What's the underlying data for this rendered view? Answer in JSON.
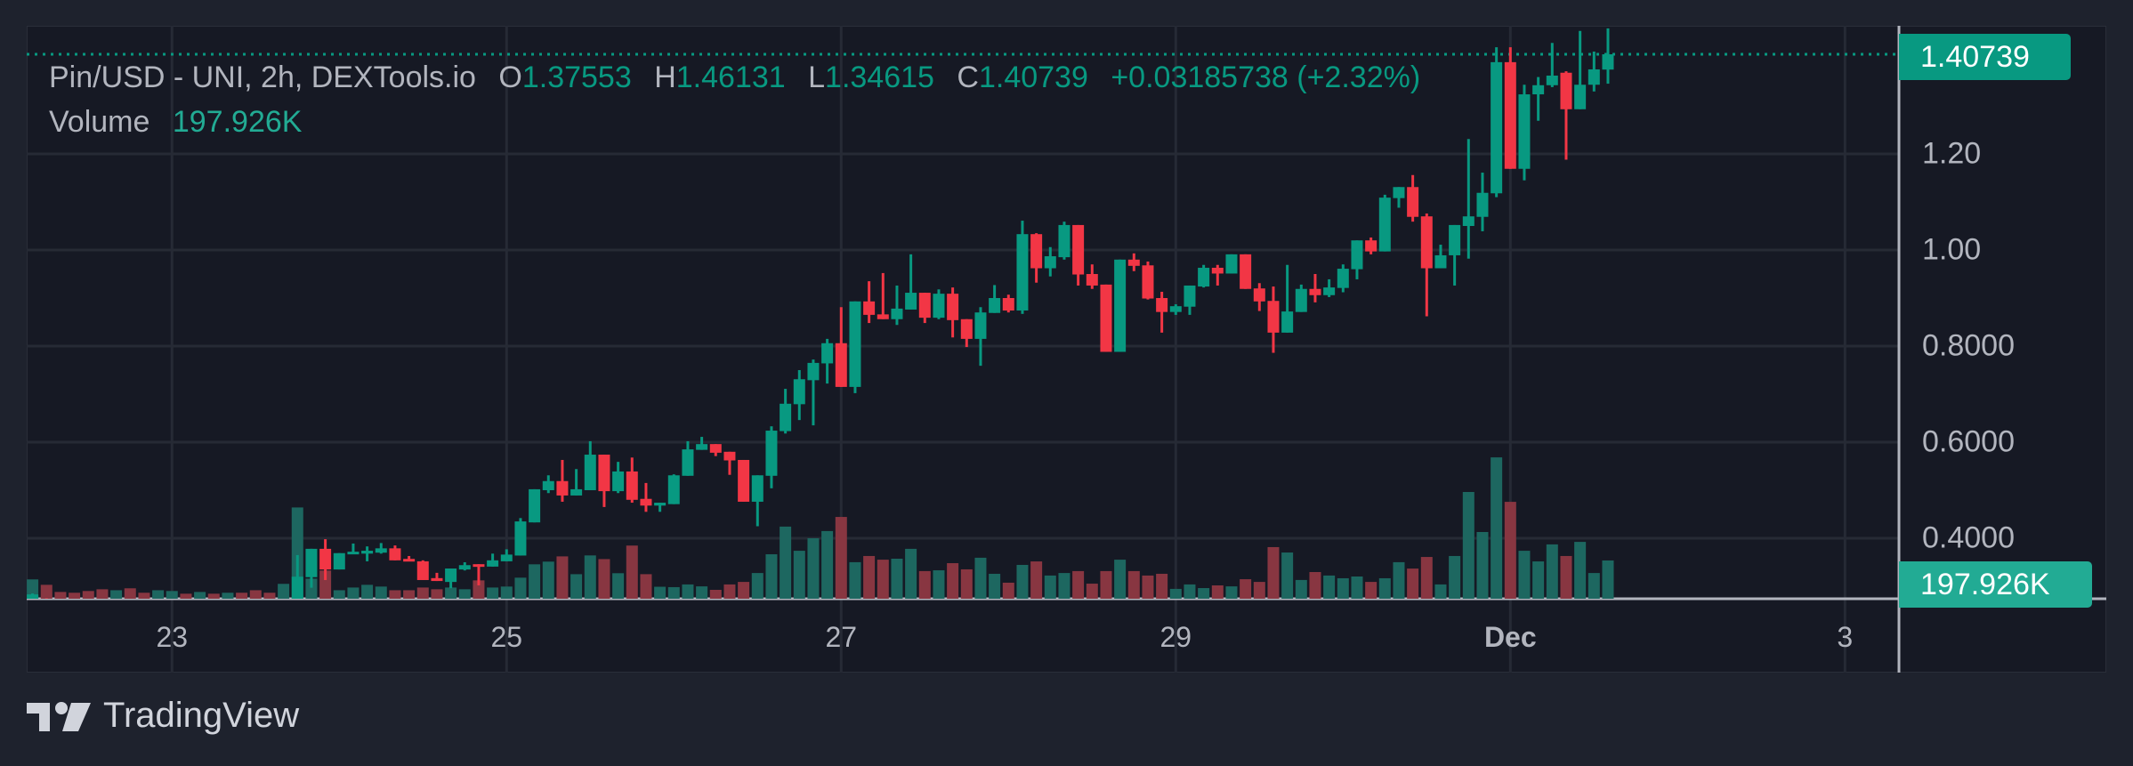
{
  "legend": {
    "symbol": "Pin/USD - UNI, 2h, DEXTools.io",
    "o_label": "O",
    "o_value": "1.37553",
    "h_label": "H",
    "h_value": "1.46131",
    "l_label": "L",
    "l_value": "1.34615",
    "c_label": "C",
    "c_value": "1.40739",
    "change": "+0.03185738 (+2.32%)",
    "volume_label": "Volume",
    "volume_value": "197.926K"
  },
  "last_price_badge": "1.40739",
  "volume_badge": "197.926K",
  "branding": "TradingView",
  "colors": {
    "up": "#089981",
    "down": "#f23645",
    "up_volume": "#1d6760",
    "down_volume": "#883641",
    "volume_badge": "#22ab94"
  },
  "chart_data": {
    "type": "candlestick",
    "title": "Pin/USD - UNI, 2h, DEXTools.io",
    "interval_hours": 2,
    "price_ticks": [
      "1.20",
      "1.00",
      "0.8000",
      "0.6000",
      "0.4000"
    ],
    "price_tick_values": [
      1.2,
      1.0,
      0.8,
      0.6,
      0.4
    ],
    "time_ticks": [
      {
        "label": "23",
        "bar": 10,
        "bold": false
      },
      {
        "label": "25",
        "bar": 34,
        "bold": false
      },
      {
        "label": "27",
        "bar": 58,
        "bold": false
      },
      {
        "label": "29",
        "bar": 82,
        "bold": false
      },
      {
        "label": "Dec",
        "bar": 106,
        "bold": true
      },
      {
        "label": "3",
        "bar": 130,
        "bold": false
      }
    ],
    "ylim": [
      0.2734,
      1.4667
    ],
    "last_price": 1.40739,
    "volume_unit": "K",
    "ohlc": [
      [
        0.27,
        0.285,
        0.265,
        0.283
      ],
      [
        0.27,
        0.275,
        0.26,
        0.262
      ],
      [
        0.262,
        0.265,
        0.255,
        0.258
      ],
      [
        0.258,
        0.26,
        0.25,
        0.255
      ],
      [
        0.255,
        0.258,
        0.248,
        0.25
      ],
      [
        0.25,
        0.253,
        0.24,
        0.245
      ],
      [
        0.245,
        0.255,
        0.24,
        0.25
      ],
      [
        0.25,
        0.252,
        0.24,
        0.243
      ],
      [
        0.243,
        0.246,
        0.238,
        0.24
      ],
      [
        0.24,
        0.25,
        0.235,
        0.247
      ],
      [
        0.247,
        0.255,
        0.242,
        0.252
      ],
      [
        0.252,
        0.254,
        0.245,
        0.248
      ],
      [
        0.248,
        0.256,
        0.245,
        0.253
      ],
      [
        0.253,
        0.255,
        0.247,
        0.25
      ],
      [
        0.25,
        0.257,
        0.246,
        0.254
      ],
      [
        0.254,
        0.256,
        0.248,
        0.251
      ],
      [
        0.251,
        0.253,
        0.243,
        0.246
      ],
      [
        0.246,
        0.249,
        0.24,
        0.244
      ],
      [
        0.244,
        0.27,
        0.24,
        0.265
      ],
      [
        0.265,
        0.365,
        0.26,
        0.32
      ],
      [
        0.319,
        0.378,
        0.297,
        0.378
      ],
      [
        0.378,
        0.398,
        0.313,
        0.335
      ],
      [
        0.335,
        0.369,
        0.335,
        0.369
      ],
      [
        0.367,
        0.389,
        0.367,
        0.372
      ],
      [
        0.368,
        0.383,
        0.352,
        0.374
      ],
      [
        0.37,
        0.39,
        0.368,
        0.379
      ],
      [
        0.379,
        0.385,
        0.354,
        0.354
      ],
      [
        0.357,
        0.363,
        0.352,
        0.352
      ],
      [
        0.352,
        0.354,
        0.313,
        0.313
      ],
      [
        0.317,
        0.328,
        0.311,
        0.311
      ],
      [
        0.309,
        0.337,
        0.296,
        0.337
      ],
      [
        0.335,
        0.35,
        0.333,
        0.344
      ],
      [
        0.346,
        0.346,
        0.302,
        0.341
      ],
      [
        0.341,
        0.368,
        0.341,
        0.354
      ],
      [
        0.352,
        0.377,
        0.352,
        0.366
      ],
      [
        0.364,
        0.442,
        0.364,
        0.435
      ],
      [
        0.433,
        0.502,
        0.433,
        0.502
      ],
      [
        0.5,
        0.531,
        0.494,
        0.519
      ],
      [
        0.519,
        0.563,
        0.476,
        0.489
      ],
      [
        0.489,
        0.544,
        0.489,
        0.502
      ],
      [
        0.5,
        0.602,
        0.5,
        0.574
      ],
      [
        0.574,
        0.574,
        0.465,
        0.498
      ],
      [
        0.498,
        0.559,
        0.494,
        0.539
      ],
      [
        0.539,
        0.568,
        0.474,
        0.48
      ],
      [
        0.482,
        0.515,
        0.455,
        0.468
      ],
      [
        0.468,
        0.474,
        0.455,
        0.474
      ],
      [
        0.471,
        0.533,
        0.471,
        0.531
      ],
      [
        0.53,
        0.602,
        0.53,
        0.585
      ],
      [
        0.584,
        0.611,
        0.584,
        0.596
      ],
      [
        0.596,
        0.596,
        0.571,
        0.578
      ],
      [
        0.58,
        0.58,
        0.532,
        0.562
      ],
      [
        0.563,
        0.563,
        0.476,
        0.476
      ],
      [
        0.476,
        0.531,
        0.425,
        0.531
      ],
      [
        0.53,
        0.633,
        0.504,
        0.624
      ],
      [
        0.623,
        0.711,
        0.618,
        0.68
      ],
      [
        0.679,
        0.75,
        0.646,
        0.731
      ],
      [
        0.729,
        0.772,
        0.635,
        0.765
      ],
      [
        0.764,
        0.815,
        0.722,
        0.806
      ],
      [
        0.806,
        0.881,
        0.715,
        0.715
      ],
      [
        0.715,
        0.893,
        0.702,
        0.893
      ],
      [
        0.893,
        0.935,
        0.848,
        0.865
      ],
      [
        0.866,
        0.952,
        0.856,
        0.856
      ],
      [
        0.856,
        0.926,
        0.844,
        0.878
      ],
      [
        0.876,
        0.991,
        0.876,
        0.911
      ],
      [
        0.911,
        0.911,
        0.848,
        0.859
      ],
      [
        0.859,
        0.918,
        0.856,
        0.909
      ],
      [
        0.909,
        0.922,
        0.818,
        0.854
      ],
      [
        0.856,
        0.856,
        0.798,
        0.815
      ],
      [
        0.815,
        0.881,
        0.759,
        0.87
      ],
      [
        0.869,
        0.927,
        0.869,
        0.9
      ],
      [
        0.9,
        0.907,
        0.87,
        0.874
      ],
      [
        0.874,
        1.061,
        0.867,
        1.033
      ],
      [
        1.033,
        1.035,
        0.932,
        0.962
      ],
      [
        0.962,
        1.006,
        0.945,
        0.987
      ],
      [
        0.985,
        1.059,
        0.98,
        1.052
      ],
      [
        1.052,
        1.052,
        0.926,
        0.949
      ],
      [
        0.95,
        0.97,
        0.919,
        0.926
      ],
      [
        0.928,
        0.928,
        0.788,
        0.788
      ],
      [
        0.788,
        0.98,
        0.788,
        0.98
      ],
      [
        0.98,
        0.993,
        0.956,
        0.967
      ],
      [
        0.968,
        0.976,
        0.897,
        0.899
      ],
      [
        0.9,
        0.913,
        0.828,
        0.871
      ],
      [
        0.871,
        0.887,
        0.865,
        0.883
      ],
      [
        0.882,
        0.926,
        0.865,
        0.926
      ],
      [
        0.924,
        0.969,
        0.922,
        0.963
      ],
      [
        0.963,
        0.969,
        0.926,
        0.951
      ],
      [
        0.951,
        0.991,
        0.951,
        0.991
      ],
      [
        0.991,
        0.991,
        0.919,
        0.919
      ],
      [
        0.92,
        0.931,
        0.873,
        0.893
      ],
      [
        0.894,
        0.924,
        0.786,
        0.828
      ],
      [
        0.828,
        0.969,
        0.828,
        0.872
      ],
      [
        0.871,
        0.928,
        0.871,
        0.919
      ],
      [
        0.919,
        0.95,
        0.891,
        0.906
      ],
      [
        0.906,
        0.939,
        0.902,
        0.922
      ],
      [
        0.921,
        0.97,
        0.912,
        0.961
      ],
      [
        0.96,
        1.02,
        0.939,
        1.02
      ],
      [
        1.02,
        1.026,
        0.991,
        0.997
      ],
      [
        0.997,
        1.115,
        0.997,
        1.109
      ],
      [
        1.108,
        1.131,
        1.088,
        1.131
      ],
      [
        1.131,
        1.156,
        1.059,
        1.069
      ],
      [
        1.07,
        1.076,
        0.862,
        0.962
      ],
      [
        0.962,
        1.011,
        0.962,
        0.989
      ],
      [
        0.989,
        1.052,
        0.926,
        1.052
      ],
      [
        1.05,
        1.231,
        0.982,
        1.07
      ],
      [
        1.069,
        1.161,
        1.039,
        1.119
      ],
      [
        1.118,
        1.422,
        1.11,
        1.391
      ],
      [
        1.391,
        1.422,
        1.169,
        1.169
      ],
      [
        1.169,
        1.344,
        1.145,
        1.324
      ],
      [
        1.324,
        1.36,
        1.269,
        1.343
      ],
      [
        1.343,
        1.431,
        1.339,
        1.363
      ],
      [
        1.369,
        1.372,
        1.188,
        1.293
      ],
      [
        1.293,
        1.456,
        1.293,
        1.344
      ],
      [
        1.344,
        1.413,
        1.33,
        1.376
      ],
      [
        1.37553,
        1.46131,
        1.34615,
        1.40739
      ]
    ],
    "volume": [
      100,
      72,
      35,
      31,
      40,
      49,
      44,
      54,
      31,
      44,
      40,
      26,
      35,
      26,
      31,
      31,
      44,
      31,
      77,
      472,
      104,
      146,
      44,
      58,
      72,
      63,
      44,
      44,
      58,
      49,
      58,
      49,
      95,
      58,
      63,
      109,
      178,
      192,
      219,
      127,
      224,
      205,
      132,
      275,
      127,
      62,
      60,
      74,
      64,
      46,
      74,
      87,
      133,
      230,
      373,
      248,
      313,
      350,
      423,
      189,
      221,
      202,
      207,
      258,
      143,
      147,
      184,
      152,
      212,
      129,
      83,
      175,
      193,
      120,
      133,
      143,
      78,
      143,
      202,
      143,
      120,
      129,
      51,
      74,
      55,
      69,
      64,
      101,
      87,
      267,
      239,
      97,
      138,
      120,
      106,
      115,
      87,
      106,
      189,
      156,
      216,
      74,
      221,
      552,
      345,
      731,
      501,
      248,
      193,
      281,
      221,
      294,
      133,
      197.926
    ]
  }
}
